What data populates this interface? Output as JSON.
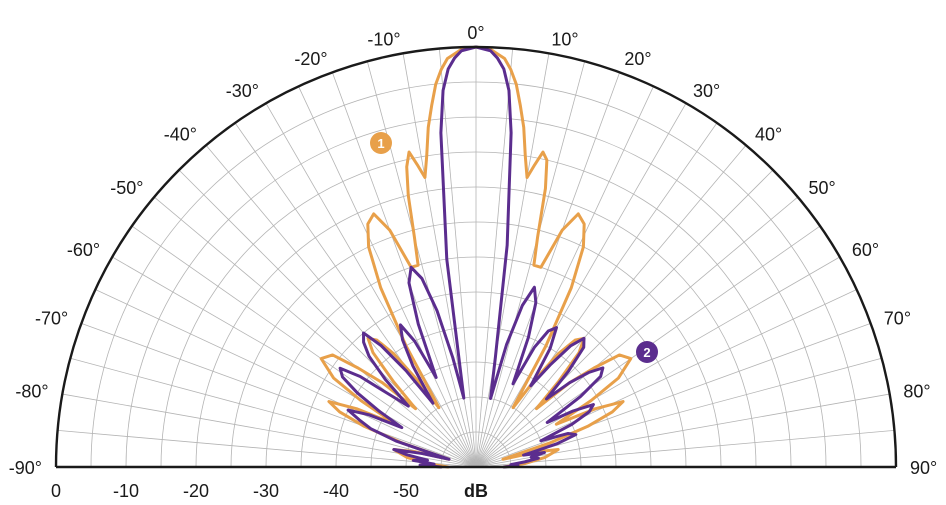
{
  "chart_data": {
    "type": "polar",
    "angle_range": [
      -90,
      90
    ],
    "angle_unit": "°",
    "angle_ticks": [
      -90,
      -80,
      -70,
      -60,
      -50,
      -40,
      -30,
      -20,
      -10,
      0,
      10,
      20,
      30,
      40,
      50,
      60,
      70,
      80,
      90
    ],
    "radial_ticks": [
      0,
      -10,
      -20,
      -30,
      -40,
      -50
    ],
    "radial_unit": "dB",
    "rlim": [
      -60,
      0
    ],
    "grid": true,
    "series": [
      {
        "marker": "1",
        "color": "#e8a04a",
        "points": [
          [
            -90,
            -56
          ],
          [
            -86,
            -53
          ],
          [
            -82,
            -50
          ],
          [
            -78,
            -48
          ],
          [
            -76,
            -51
          ],
          [
            -74,
            -56
          ],
          [
            -72,
            -49
          ],
          [
            -70,
            -43
          ],
          [
            -68,
            -39
          ],
          [
            -66,
            -37
          ],
          [
            -64,
            -41
          ],
          [
            -62,
            -47
          ],
          [
            -60,
            -41
          ],
          [
            -58,
            -36
          ],
          [
            -55,
            -33
          ],
          [
            -52,
            -34
          ],
          [
            -50,
            -38
          ],
          [
            -48,
            -42
          ],
          [
            -46,
            -48
          ],
          [
            -44,
            -43
          ],
          [
            -42,
            -38
          ],
          [
            -40,
            -36
          ],
          [
            -38,
            -37
          ],
          [
            -36,
            -40
          ],
          [
            -34,
            -45
          ],
          [
            -32,
            -50
          ],
          [
            -30,
            -40
          ],
          [
            -28,
            -31
          ],
          [
            -26,
            -25
          ],
          [
            -24,
            -22
          ],
          [
            -22,
            -21
          ],
          [
            -20,
            -24
          ],
          [
            -18,
            -30
          ],
          [
            -16,
            -30
          ],
          [
            -15,
            -26
          ],
          [
            -14,
            -20
          ],
          [
            -13,
            -16
          ],
          [
            -12,
            -14
          ],
          [
            -11,
            -16
          ],
          [
            -10,
            -18
          ],
          [
            -9,
            -15
          ],
          [
            -8,
            -11
          ],
          [
            -7,
            -8
          ],
          [
            -6,
            -5
          ],
          [
            -5,
            -3
          ],
          [
            -4,
            -1.5
          ],
          [
            -2,
            -0.3
          ],
          [
            0,
            0
          ],
          [
            2,
            -0.3
          ],
          [
            4,
            -1.5
          ],
          [
            5,
            -3
          ],
          [
            6,
            -5
          ],
          [
            7,
            -8
          ],
          [
            8,
            -11
          ],
          [
            9,
            -15
          ],
          [
            10,
            -18
          ],
          [
            11,
            -16
          ],
          [
            12,
            -14
          ],
          [
            13,
            -15
          ],
          [
            14,
            -19
          ],
          [
            15,
            -26
          ],
          [
            16,
            -30
          ],
          [
            18,
            -30
          ],
          [
            20,
            -24
          ],
          [
            22,
            -21
          ],
          [
            24,
            -22
          ],
          [
            26,
            -25
          ],
          [
            28,
            -31
          ],
          [
            30,
            -40
          ],
          [
            32,
            -50
          ],
          [
            34,
            -45
          ],
          [
            36,
            -40
          ],
          [
            38,
            -37
          ],
          [
            40,
            -36
          ],
          [
            42,
            -38
          ],
          [
            44,
            -43
          ],
          [
            46,
            -48
          ],
          [
            48,
            -42
          ],
          [
            50,
            -38
          ],
          [
            52,
            -34
          ],
          [
            55,
            -33
          ],
          [
            58,
            -36
          ],
          [
            60,
            -41
          ],
          [
            62,
            -47
          ],
          [
            64,
            -41
          ],
          [
            66,
            -37
          ],
          [
            68,
            -39
          ],
          [
            70,
            -43
          ],
          [
            72,
            -49
          ],
          [
            74,
            -56
          ],
          [
            76,
            -51
          ],
          [
            78,
            -48
          ],
          [
            82,
            -50
          ],
          [
            86,
            -53
          ],
          [
            90,
            -56
          ]
        ]
      },
      {
        "marker": "2",
        "color": "#5b2d8e",
        "points": [
          [
            -90,
            -55
          ],
          [
            -88,
            -52
          ],
          [
            -86,
            -54
          ],
          [
            -84,
            -51
          ],
          [
            -82,
            -53
          ],
          [
            -80,
            -50
          ],
          [
            -78,
            -48
          ],
          [
            -76,
            -52
          ],
          [
            -74,
            -56
          ],
          [
            -72,
            -48
          ],
          [
            -70,
            -44
          ],
          [
            -68,
            -42
          ],
          [
            -66,
            -40
          ],
          [
            -64,
            -43
          ],
          [
            -62,
            -48
          ],
          [
            -60,
            -44
          ],
          [
            -58,
            -40
          ],
          [
            -56,
            -37
          ],
          [
            -54,
            -36
          ],
          [
            -52,
            -39
          ],
          [
            -50,
            -44
          ],
          [
            -48,
            -47
          ],
          [
            -46,
            -42
          ],
          [
            -44,
            -38
          ],
          [
            -42,
            -36
          ],
          [
            -40,
            -35
          ],
          [
            -38,
            -38
          ],
          [
            -36,
            -43
          ],
          [
            -34,
            -49
          ],
          [
            -32,
            -43
          ],
          [
            -30,
            -39
          ],
          [
            -28,
            -37
          ],
          [
            -26,
            -40
          ],
          [
            -24,
            -46
          ],
          [
            -22,
            -38
          ],
          [
            -20,
            -32
          ],
          [
            -18,
            -30
          ],
          [
            -16,
            -32
          ],
          [
            -14,
            -37
          ],
          [
            -12,
            -44
          ],
          [
            -10,
            -50
          ],
          [
            -8,
            -30
          ],
          [
            -6,
            -12
          ],
          [
            -5,
            -6
          ],
          [
            -4,
            -3
          ],
          [
            -3,
            -1.5
          ],
          [
            -2,
            -0.5
          ],
          [
            0,
            0
          ],
          [
            2,
            -0.5
          ],
          [
            3,
            -1.5
          ],
          [
            4,
            -3
          ],
          [
            5,
            -6
          ],
          [
            6,
            -12
          ],
          [
            8,
            -28
          ],
          [
            10,
            -44
          ],
          [
            12,
            -50
          ],
          [
            14,
            -42
          ],
          [
            16,
            -36
          ],
          [
            18,
            -33
          ],
          [
            20,
            -35
          ],
          [
            22,
            -40
          ],
          [
            24,
            -47
          ],
          [
            26,
            -41
          ],
          [
            28,
            -38
          ],
          [
            30,
            -37
          ],
          [
            32,
            -40
          ],
          [
            34,
            -46
          ],
          [
            36,
            -42
          ],
          [
            38,
            -38
          ],
          [
            40,
            -36
          ],
          [
            42,
            -37
          ],
          [
            44,
            -41
          ],
          [
            46,
            -46
          ],
          [
            48,
            -42
          ],
          [
            50,
            -39
          ],
          [
            52,
            -37
          ],
          [
            54,
            -38
          ],
          [
            56,
            -42
          ],
          [
            58,
            -48
          ],
          [
            60,
            -44
          ],
          [
            62,
            -41
          ],
          [
            64,
            -42
          ],
          [
            66,
            -45
          ],
          [
            68,
            -50
          ],
          [
            70,
            -46
          ],
          [
            72,
            -45
          ],
          [
            74,
            -48
          ],
          [
            76,
            -53
          ],
          [
            78,
            -50
          ],
          [
            80,
            -52
          ],
          [
            82,
            -51
          ],
          [
            84,
            -53
          ],
          [
            86,
            -55
          ],
          [
            88,
            -54
          ],
          [
            90,
            -56
          ]
        ]
      }
    ]
  }
}
